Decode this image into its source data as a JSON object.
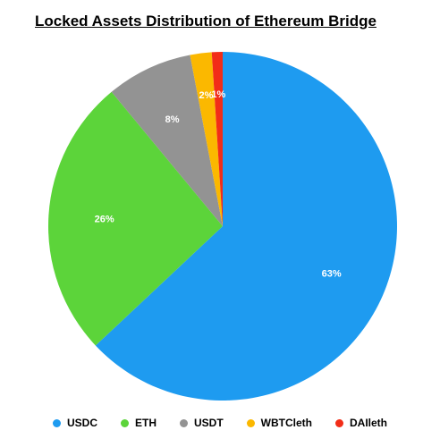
{
  "chart_data": {
    "type": "pie",
    "title": "Locked Assets Distribution of Ethereum Bridge",
    "legend_position": "bottom",
    "slices": [
      {
        "label": "USDC",
        "value": 63,
        "display": "63%",
        "color": "#1E9BF0"
      },
      {
        "label": "ETH",
        "value": 26,
        "display": "26%",
        "color": "#5CD43A"
      },
      {
        "label": "USDT",
        "value": 8,
        "display": "8%",
        "color": "#939393"
      },
      {
        "label": "WBTCleth",
        "value": 2,
        "display": "2%",
        "color": "#FBB800"
      },
      {
        "label": "DAIleth",
        "value": 1,
        "display": "1%",
        "color": "#F22D18"
      }
    ]
  }
}
